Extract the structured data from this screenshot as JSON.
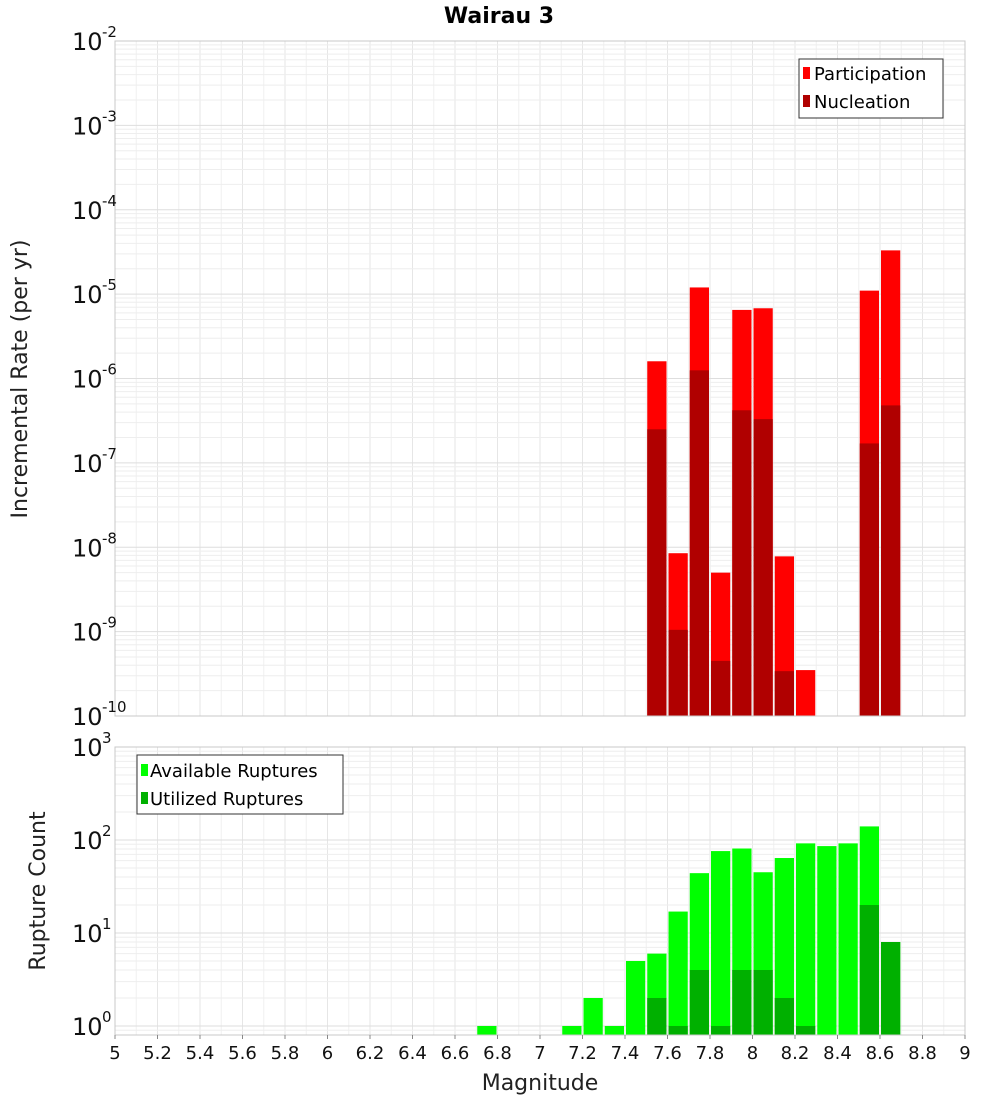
{
  "chart_data": [
    {
      "type": "bar",
      "title": "Wairau 3",
      "xlabel": "",
      "ylabel": "Incremental Rate (per yr)",
      "yscale": "log",
      "ylim": [
        1e-10,
        0.01
      ],
      "xlim": [
        5,
        9
      ],
      "bin_width": 0.1,
      "legend_position": "top-right",
      "y_ticks": [
        {
          "base": "10",
          "exp": "-2",
          "value": 0.01
        },
        {
          "base": "10",
          "exp": "-3",
          "value": 0.001
        },
        {
          "base": "10",
          "exp": "-4",
          "value": 0.0001
        },
        {
          "base": "10",
          "exp": "-5",
          "value": 1e-05
        },
        {
          "base": "10",
          "exp": "-6",
          "value": 1e-06
        },
        {
          "base": "10",
          "exp": "-7",
          "value": 1e-07
        },
        {
          "base": "10",
          "exp": "-8",
          "value": 1e-08
        },
        {
          "base": "10",
          "exp": "-9",
          "value": 1e-09
        },
        {
          "base": "10",
          "exp": "-10",
          "value": 1e-10
        }
      ],
      "x": [
        7.55,
        7.65,
        7.75,
        7.85,
        7.95,
        8.05,
        8.15,
        8.25,
        8.55,
        8.65
      ],
      "series": [
        {
          "name": "Participation",
          "color": "#ff0000",
          "values": [
            1.6e-06,
            8.5e-09,
            1.2e-05,
            5e-09,
            6.5e-06,
            6.8e-06,
            7.8e-09,
            3.5e-10,
            1.1e-05,
            3.3e-05
          ]
        },
        {
          "name": "Nucleation",
          "color": "#b00000",
          "values": [
            2.5e-07,
            1.05e-09,
            1.25e-06,
            4.5e-10,
            4.2e-07,
            3.3e-07,
            3.4e-10,
            null,
            1.7e-07,
            4.8e-07
          ]
        }
      ]
    },
    {
      "type": "bar",
      "title": "",
      "xlabel": "Magnitude",
      "ylabel": "Rupture Count",
      "yscale": "log",
      "ylim": [
        0.8,
        1000
      ],
      "xlim": [
        5,
        9
      ],
      "bin_width": 0.1,
      "legend_position": "top-left",
      "x_ticks": [
        "5",
        "5.2",
        "5.4",
        "5.6",
        "5.8",
        "6",
        "6.2",
        "6.4",
        "6.6",
        "6.8",
        "7",
        "7.2",
        "7.4",
        "7.6",
        "7.8",
        "8",
        "8.2",
        "8.4",
        "8.6",
        "8.8",
        "9"
      ],
      "y_ticks": [
        {
          "base": "10",
          "exp": "3",
          "value": 1000
        },
        {
          "base": "10",
          "exp": "2",
          "value": 100
        },
        {
          "base": "10",
          "exp": "1",
          "value": 10
        },
        {
          "base": "10",
          "exp": "0",
          "value": 1
        }
      ],
      "x": [
        6.75,
        7.15,
        7.25,
        7.35,
        7.45,
        7.55,
        7.65,
        7.75,
        7.85,
        7.95,
        8.05,
        8.15,
        8.25,
        8.35,
        8.45,
        8.55,
        8.65
      ],
      "series": [
        {
          "name": "Available Ruptures",
          "color": "#00ff00",
          "values": [
            1,
            1,
            2,
            1,
            5,
            6,
            17,
            44,
            76,
            81,
            45,
            64,
            92,
            86,
            92,
            140,
            8
          ]
        },
        {
          "name": "Utilized Ruptures",
          "color": "#00b000",
          "values": [
            null,
            null,
            null,
            null,
            null,
            2,
            1,
            4,
            1,
            4,
            4,
            2,
            1,
            null,
            null,
            20,
            8
          ]
        }
      ]
    }
  ]
}
